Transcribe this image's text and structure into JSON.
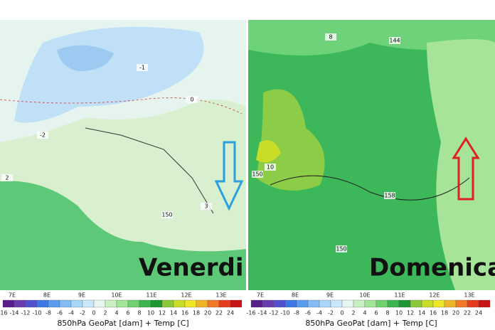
{
  "panels": [
    {
      "label": "Venerdi",
      "lon_labels": [
        "7E",
        "8E",
        "9E",
        "10E",
        "11E",
        "12E",
        "13E"
      ],
      "colorbar_labels": [
        -16,
        -14,
        -12,
        -10,
        -8,
        -6,
        -4,
        -2,
        0,
        2,
        4,
        6,
        8,
        10,
        12,
        14,
        16,
        18,
        20,
        22,
        24
      ],
      "caption": "850hPa GeoPat [dam] + Temp [C]",
      "contour_labels": [
        -2,
        -1,
        0,
        2,
        3,
        150
      ]
    },
    {
      "label": "Domenica",
      "lon_labels": [
        "7E",
        "8E",
        "9E",
        "10E",
        "11E",
        "12E",
        "13E"
      ],
      "colorbar_labels": [
        -16,
        -14,
        -12,
        -10,
        -8,
        -6,
        -4,
        -2,
        0,
        2,
        4,
        6,
        8,
        10,
        12,
        14,
        16,
        18,
        20,
        22,
        24
      ],
      "caption": "850hPa GeoPat [dam] + Temp [C]",
      "contour_labels": [
        8,
        10,
        144,
        150,
        158,
        150
      ]
    }
  ],
  "colorbar_colors": [
    "#5a1e8c",
    "#6a3cb0",
    "#5050d0",
    "#3c78e6",
    "#5a9cf0",
    "#82bef5",
    "#a8d6f8",
    "#c8e8fa",
    "#e6f5f0",
    "#c8f0c0",
    "#a0e696",
    "#6ed26e",
    "#3cb450",
    "#1e9632",
    "#8cc83c",
    "#c8dc28",
    "#f0e628",
    "#f0b428",
    "#f07828",
    "#e63c1e",
    "#c81414"
  ]
}
